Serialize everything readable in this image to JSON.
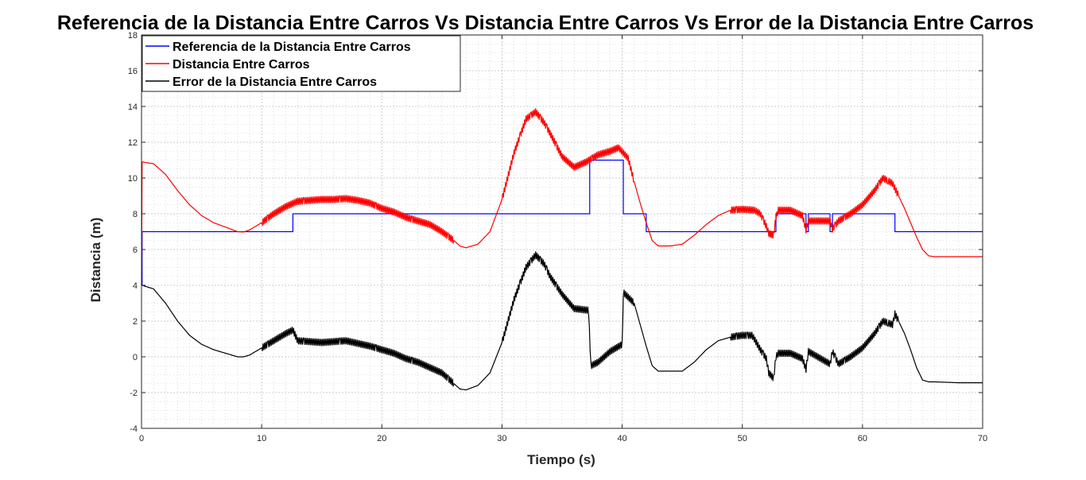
{
  "chart_data": {
    "type": "line",
    "title": "Referencia de la Distancia Entre Carros Vs Distancia Entre Carros Vs Error de la Distancia Entre Carros",
    "xlabel": "Tiempo (s)",
    "ylabel": "Distancia (m)",
    "xlim": [
      0,
      70
    ],
    "ylim": [
      -4,
      18
    ],
    "xticks": [
      0,
      10,
      20,
      30,
      40,
      50,
      60,
      70
    ],
    "yticks": [
      -4,
      -2,
      0,
      2,
      4,
      6,
      8,
      10,
      12,
      14,
      16,
      18
    ],
    "grid": true,
    "minor_grid": true,
    "legend": "top-left",
    "series": [
      {
        "name": "Referencia de la Distancia Entre Carros",
        "color": "#0000ff",
        "step": true,
        "x": [
          0,
          0.05,
          12.6,
          37.3,
          40.1,
          42,
          50.8,
          52.8,
          55.3,
          55.5,
          57.3,
          57.5,
          62.7,
          70
        ],
        "y": [
          4,
          7,
          8,
          11,
          8,
          7,
          7,
          8,
          7,
          8,
          7,
          8,
          7,
          7
        ]
      },
      {
        "name": "Distancia Entre Carros",
        "color": "#ff0000",
        "x": [
          0,
          0.05,
          1,
          2,
          3,
          4,
          5,
          6,
          7,
          8,
          8.5,
          9,
          10,
          11,
          12,
          13,
          14,
          15,
          16,
          17,
          18,
          19,
          20,
          21,
          22,
          23,
          24,
          25,
          26,
          26.5,
          27,
          28,
          29,
          30,
          31,
          32,
          32.8,
          33.5,
          34,
          35,
          36,
          37,
          38,
          39,
          39.7,
          40.5,
          41,
          41.5,
          42,
          42.5,
          43,
          44,
          45,
          46,
          47,
          48,
          49,
          50,
          51,
          51.5,
          52,
          52.2,
          52.6,
          52.8,
          53,
          54,
          55,
          55.3,
          55.5,
          57.3,
          57.5,
          58,
          59,
          60,
          61,
          61.7,
          62.5,
          63,
          63.5,
          64,
          64.5,
          65,
          65.5,
          66,
          68,
          70
        ],
        "y": [
          4,
          10.9,
          10.8,
          10.2,
          9.3,
          8.5,
          7.9,
          7.5,
          7.25,
          7.0,
          6.98,
          7.1,
          7.5,
          8.0,
          8.4,
          8.7,
          8.75,
          8.8,
          8.8,
          8.85,
          8.75,
          8.6,
          8.3,
          8.1,
          7.8,
          7.6,
          7.4,
          7.0,
          6.5,
          6.2,
          6.1,
          6.3,
          7.0,
          8.8,
          11.4,
          13.3,
          13.7,
          13.1,
          12.5,
          11.2,
          10.6,
          10.9,
          11.3,
          11.5,
          11.7,
          11.1,
          9.8,
          8.6,
          7.5,
          6.5,
          6.2,
          6.2,
          6.3,
          6.8,
          7.4,
          7.9,
          8.2,
          8.25,
          8.2,
          8.0,
          7.3,
          6.9,
          6.8,
          7.8,
          8.2,
          8.2,
          7.9,
          7.1,
          7.6,
          7.6,
          7.15,
          7.6,
          8.0,
          8.5,
          9.3,
          10.0,
          9.7,
          9.0,
          8.3,
          7.5,
          6.7,
          6.0,
          5.65,
          5.6,
          5.6,
          5.6
        ]
      },
      {
        "name": "Error de la Distancia Entre Carros",
        "color": "#000000",
        "x": [
          0,
          0.05,
          1,
          2,
          3,
          4,
          5,
          6,
          7,
          8,
          8.5,
          9,
          10,
          11,
          12,
          12.6,
          13,
          14,
          15,
          16,
          17,
          18,
          19,
          20,
          21,
          22,
          23,
          24,
          25,
          26,
          26.5,
          27,
          28,
          29,
          30,
          31,
          32,
          32.8,
          33.5,
          34,
          35,
          36,
          37.2,
          37.4,
          38,
          39,
          40,
          40.1,
          41,
          41.5,
          42,
          42.5,
          43,
          44,
          45,
          46,
          47,
          48,
          49,
          50,
          50.8,
          51,
          51.5,
          52,
          52.2,
          52.6,
          52.8,
          53,
          54,
          55,
          55.3,
          55.5,
          57.3,
          57.5,
          58,
          59,
          60,
          61,
          61.7,
          62.5,
          62.7,
          63,
          63.5,
          64,
          64.5,
          65,
          65.5,
          66,
          68,
          70
        ],
        "y": [
          4,
          4.0,
          3.8,
          3.0,
          2.0,
          1.2,
          0.7,
          0.4,
          0.2,
          0.0,
          0.0,
          0.1,
          0.5,
          0.9,
          1.3,
          1.5,
          0.9,
          0.85,
          0.8,
          0.85,
          0.9,
          0.75,
          0.6,
          0.4,
          0.2,
          -0.1,
          -0.3,
          -0.6,
          -0.9,
          -1.5,
          -1.8,
          -1.85,
          -1.6,
          -0.9,
          0.8,
          3.2,
          5.0,
          5.7,
          5.2,
          4.5,
          3.5,
          2.7,
          2.6,
          -0.5,
          -0.3,
          0.3,
          0.7,
          3.6,
          3.0,
          1.8,
          0.6,
          -0.5,
          -0.8,
          -0.8,
          -0.8,
          -0.3,
          0.4,
          0.9,
          1.1,
          1.2,
          1.2,
          1.0,
          0.4,
          -0.1,
          -0.9,
          -1.2,
          0.0,
          0.2,
          0.2,
          -0.1,
          -0.7,
          0.3,
          -0.4,
          0.3,
          -0.4,
          0.0,
          0.5,
          1.3,
          2.0,
          1.8,
          2.4,
          2.0,
          1.3,
          0.4,
          -0.6,
          -1.3,
          -1.4,
          -1.4,
          -1.45,
          -1.45
        ]
      }
    ]
  }
}
